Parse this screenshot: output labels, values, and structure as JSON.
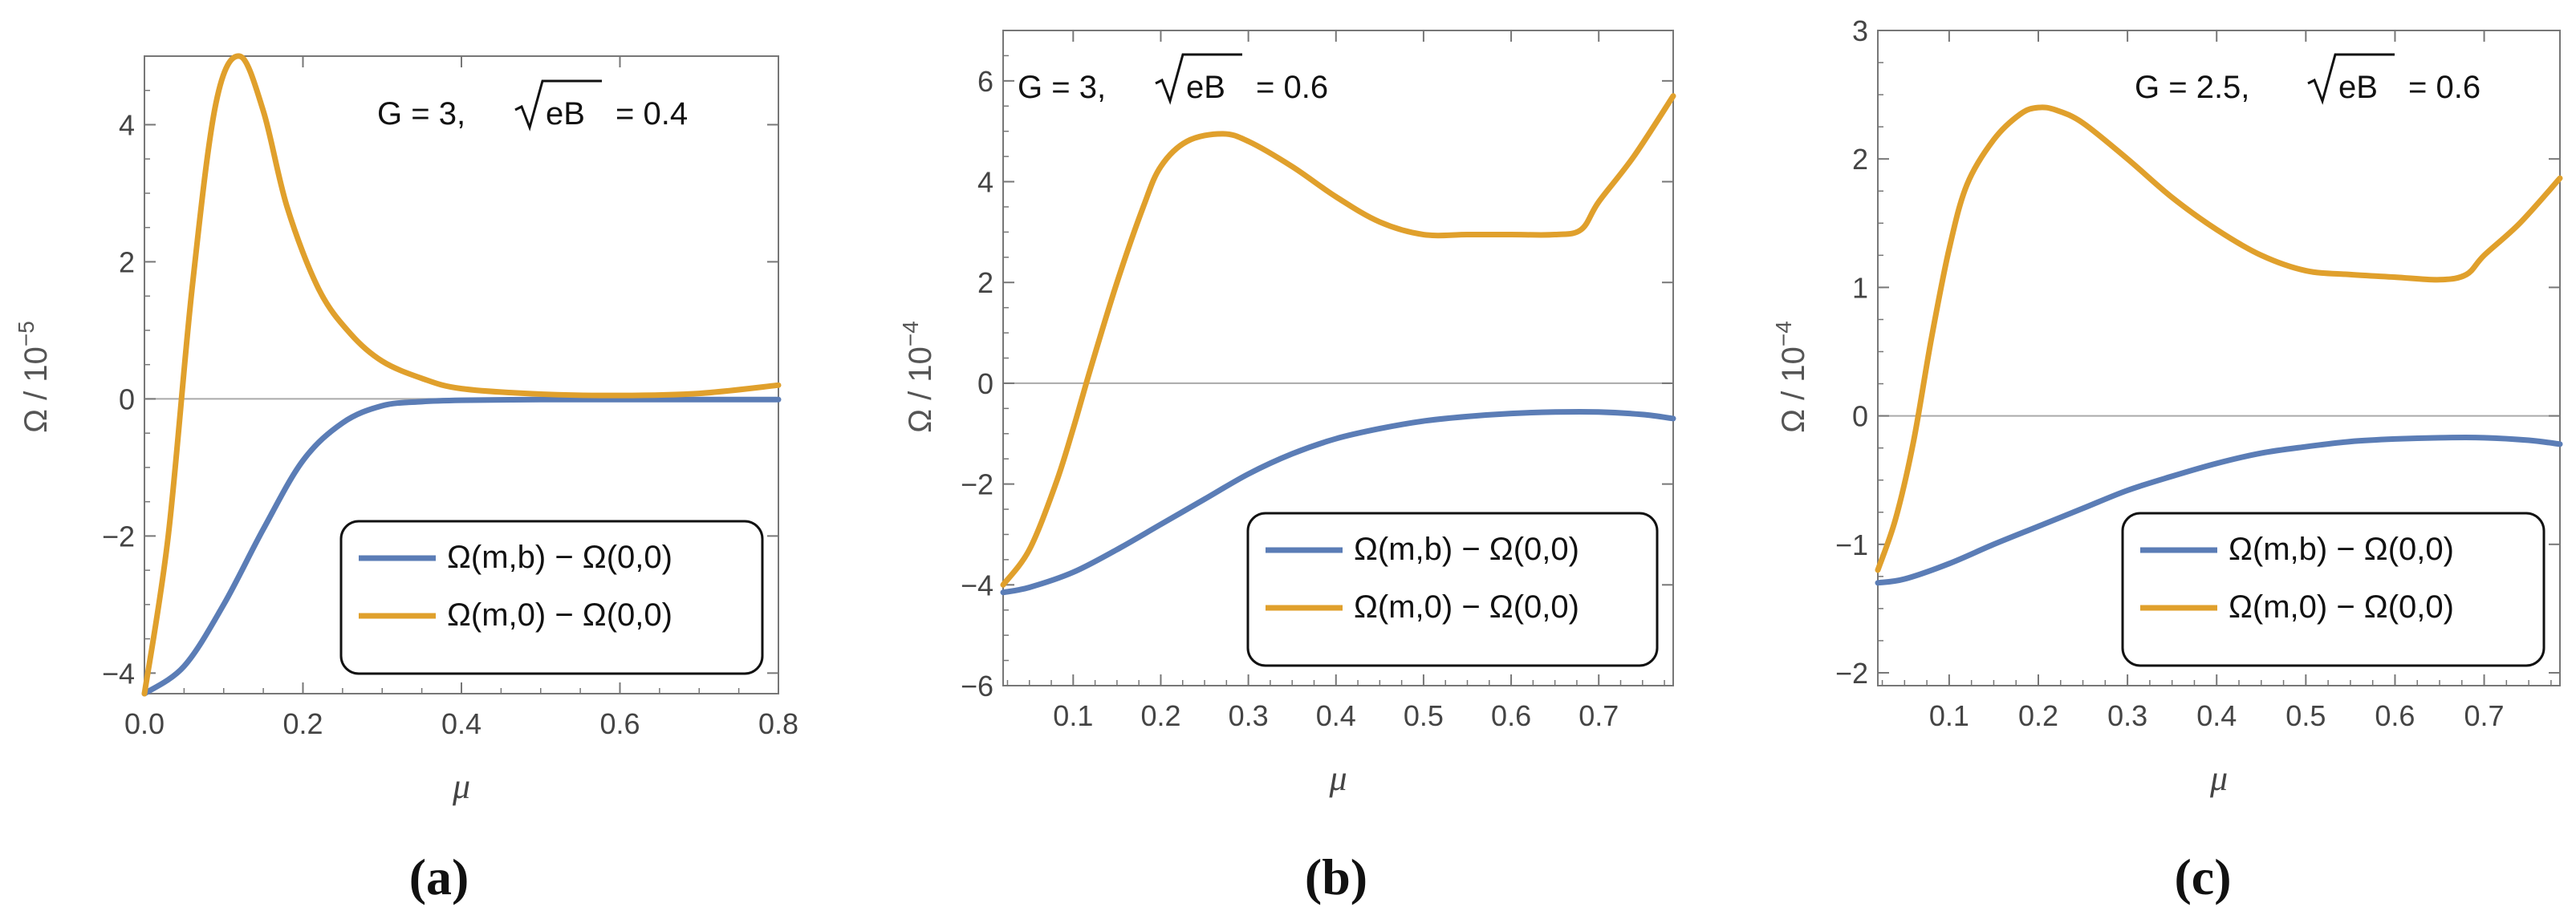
{
  "chart_data": [
    {
      "type": "line",
      "panel": "a",
      "panel_label": "(a)",
      "annotation": {
        "g_text": "G = 3,",
        "eb_text": "eB",
        "eb_value": "= 0.4"
      },
      "xlabel": "μ",
      "ylabel": "Ω / 10",
      "ylabel_exp": "−5",
      "xlim": [
        0.0,
        0.8
      ],
      "ylim": [
        -4.3,
        5.0
      ],
      "xticks": [
        0.0,
        0.2,
        0.4,
        0.6,
        0.8
      ],
      "xtick_labels": [
        "0.0",
        "0.2",
        "0.4",
        "0.6",
        "0.8"
      ],
      "yticks": [
        -4,
        -2,
        0,
        2,
        4
      ],
      "ytick_labels": [
        "−4",
        "−2",
        "0",
        "2",
        "4"
      ],
      "legend": [
        "Ω(m,b) − Ω(0,0)",
        "Ω(m,0) − Ω(0,0)"
      ],
      "legend_position": "bottom-right",
      "series": [
        {
          "name": "Ω(m,b) − Ω(0,0)",
          "color": "#5b7db6",
          "x": [
            0.0,
            0.05,
            0.1,
            0.15,
            0.2,
            0.25,
            0.3,
            0.35,
            0.4,
            0.5,
            0.6,
            0.7,
            0.8
          ],
          "y": [
            -4.3,
            -3.9,
            -3.0,
            -1.9,
            -0.9,
            -0.35,
            -0.1,
            -0.04,
            -0.02,
            -0.01,
            -0.01,
            -0.01,
            -0.01
          ]
        },
        {
          "name": "Ω(m,0) − Ω(0,0)",
          "color": "#e0a02c",
          "x": [
            0.0,
            0.03,
            0.06,
            0.09,
            0.12,
            0.15,
            0.18,
            0.22,
            0.26,
            0.3,
            0.35,
            0.4,
            0.5,
            0.6,
            0.7,
            0.8
          ],
          "y": [
            -4.3,
            -2.0,
            1.6,
            4.3,
            5.0,
            4.2,
            2.8,
            1.6,
            0.95,
            0.55,
            0.3,
            0.15,
            0.07,
            0.05,
            0.08,
            0.2
          ]
        }
      ]
    },
    {
      "type": "line",
      "panel": "b",
      "panel_label": "(b)",
      "annotation": {
        "g_text": "G = 3,",
        "eb_text": "eB",
        "eb_value": "= 0.6"
      },
      "xlabel": "μ",
      "ylabel": "Ω / 10",
      "ylabel_exp": "−4",
      "xlim": [
        0.02,
        0.785
      ],
      "ylim": [
        -6.0,
        7.0
      ],
      "xticks": [
        0.1,
        0.2,
        0.3,
        0.4,
        0.5,
        0.6,
        0.7
      ],
      "xtick_labels": [
        "0.1",
        "0.2",
        "0.3",
        "0.4",
        "0.5",
        "0.6",
        "0.7"
      ],
      "yticks": [
        -6,
        -4,
        -2,
        0,
        2,
        4,
        6
      ],
      "ytick_labels": [
        "−6",
        "−4",
        "−2",
        "0",
        "2",
        "4",
        "6"
      ],
      "legend": [
        "Ω(m,b) − Ω(0,0)",
        "Ω(m,0) − Ω(0,0)"
      ],
      "legend_position": "bottom-right",
      "series": [
        {
          "name": "Ω(m,b) − Ω(0,0)",
          "color": "#5b7db6",
          "x": [
            0.02,
            0.05,
            0.1,
            0.15,
            0.2,
            0.25,
            0.3,
            0.35,
            0.4,
            0.45,
            0.5,
            0.55,
            0.6,
            0.65,
            0.7,
            0.75,
            0.785
          ],
          "y": [
            -4.15,
            -4.05,
            -3.75,
            -3.3,
            -2.8,
            -2.3,
            -1.8,
            -1.4,
            -1.1,
            -0.9,
            -0.75,
            -0.66,
            -0.6,
            -0.57,
            -0.57,
            -0.62,
            -0.7
          ]
        },
        {
          "name": "Ω(m,0) − Ω(0,0)",
          "color": "#e0a02c",
          "x": [
            0.02,
            0.05,
            0.08,
            0.1,
            0.12,
            0.15,
            0.18,
            0.2,
            0.23,
            0.27,
            0.3,
            0.35,
            0.4,
            0.45,
            0.5,
            0.55,
            0.6,
            0.65,
            0.68,
            0.7,
            0.74,
            0.785
          ],
          "y": [
            -4.0,
            -3.3,
            -2.0,
            -0.9,
            0.3,
            2.0,
            3.5,
            4.3,
            4.8,
            4.95,
            4.8,
            4.3,
            3.7,
            3.2,
            2.95,
            2.95,
            2.95,
            2.95,
            3.05,
            3.6,
            4.5,
            5.7
          ]
        }
      ]
    },
    {
      "type": "line",
      "panel": "c",
      "panel_label": "(c)",
      "annotation": {
        "g_text": "G = 2.5,",
        "eb_text": "eB",
        "eb_value": "= 0.6"
      },
      "xlabel": "μ",
      "ylabel": "Ω / 10",
      "ylabel_exp": "−4",
      "xlim": [
        0.02,
        0.785
      ],
      "ylim": [
        -2.1,
        3.0
      ],
      "xticks": [
        0.1,
        0.2,
        0.3,
        0.4,
        0.5,
        0.6,
        0.7
      ],
      "xtick_labels": [
        "0.1",
        "0.2",
        "0.3",
        "0.4",
        "0.5",
        "0.6",
        "0.7"
      ],
      "yticks": [
        -2,
        -1,
        0,
        1,
        2,
        3
      ],
      "ytick_labels": [
        "−2",
        "−1",
        "0",
        "1",
        "2",
        "3"
      ],
      "legend": [
        "Ω(m,b) − Ω(0,0)",
        "Ω(m,0) − Ω(0,0)"
      ],
      "legend_position": "bottom-right",
      "series": [
        {
          "name": "Ω(m,b) − Ω(0,0)",
          "color": "#5b7db6",
          "x": [
            0.02,
            0.05,
            0.1,
            0.15,
            0.2,
            0.25,
            0.3,
            0.35,
            0.4,
            0.45,
            0.5,
            0.55,
            0.6,
            0.65,
            0.7,
            0.75,
            0.785
          ],
          "y": [
            -1.3,
            -1.27,
            -1.15,
            -1.0,
            -0.86,
            -0.72,
            -0.58,
            -0.47,
            -0.37,
            -0.29,
            -0.24,
            -0.2,
            -0.18,
            -0.17,
            -0.17,
            -0.19,
            -0.22
          ]
        },
        {
          "name": "Ω(m,0) − Ω(0,0)",
          "color": "#e0a02c",
          "x": [
            0.02,
            0.04,
            0.06,
            0.08,
            0.1,
            0.12,
            0.15,
            0.18,
            0.2,
            0.22,
            0.25,
            0.3,
            0.35,
            0.4,
            0.45,
            0.5,
            0.55,
            0.6,
            0.65,
            0.68,
            0.7,
            0.74,
            0.785
          ],
          "y": [
            -1.2,
            -0.8,
            -0.2,
            0.6,
            1.3,
            1.8,
            2.15,
            2.35,
            2.4,
            2.38,
            2.28,
            2.0,
            1.7,
            1.45,
            1.25,
            1.13,
            1.1,
            1.08,
            1.06,
            1.1,
            1.25,
            1.5,
            1.85
          ]
        }
      ]
    }
  ]
}
